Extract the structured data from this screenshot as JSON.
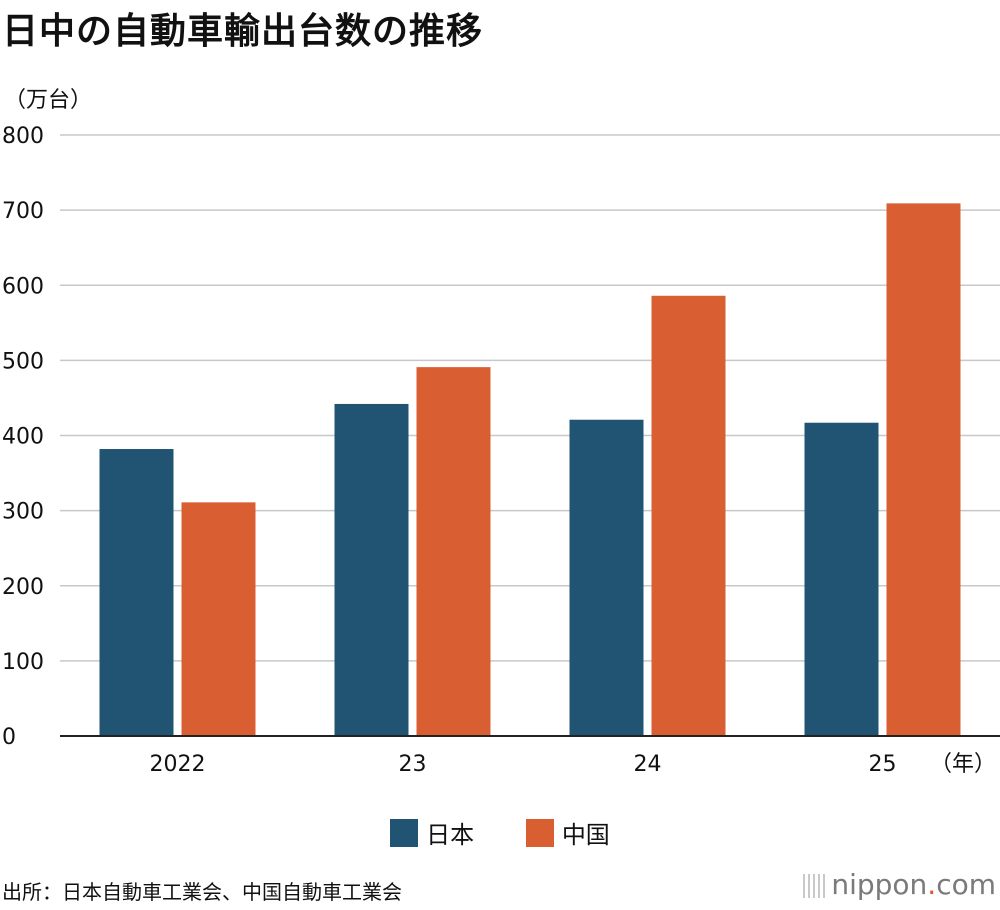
{
  "title": "日中の自動車輸出台数の推移",
  "source": "出所：日本自動車工業会、中国自動車工業会",
  "brand": {
    "name": "nippon",
    "dot": ".",
    "tld": "com"
  },
  "chart_data": {
    "type": "bar",
    "title": "日中の自動車輸出台数の推移",
    "ylabel": "（万台）",
    "xlabel": "（年）",
    "categories": [
      "2022",
      "23",
      "24",
      "25"
    ],
    "series": [
      {
        "name": "日本",
        "color": "#215473",
        "values": [
          382,
          442,
          421,
          417
        ]
      },
      {
        "name": "中国",
        "color": "#d95f33",
        "values": [
          311,
          491,
          586,
          709
        ]
      }
    ],
    "ylim": [
      0,
      800
    ],
    "yticks": [
      0,
      100,
      200,
      300,
      400,
      500,
      600,
      700,
      800
    ],
    "grid": true,
    "legend": "bottom"
  }
}
